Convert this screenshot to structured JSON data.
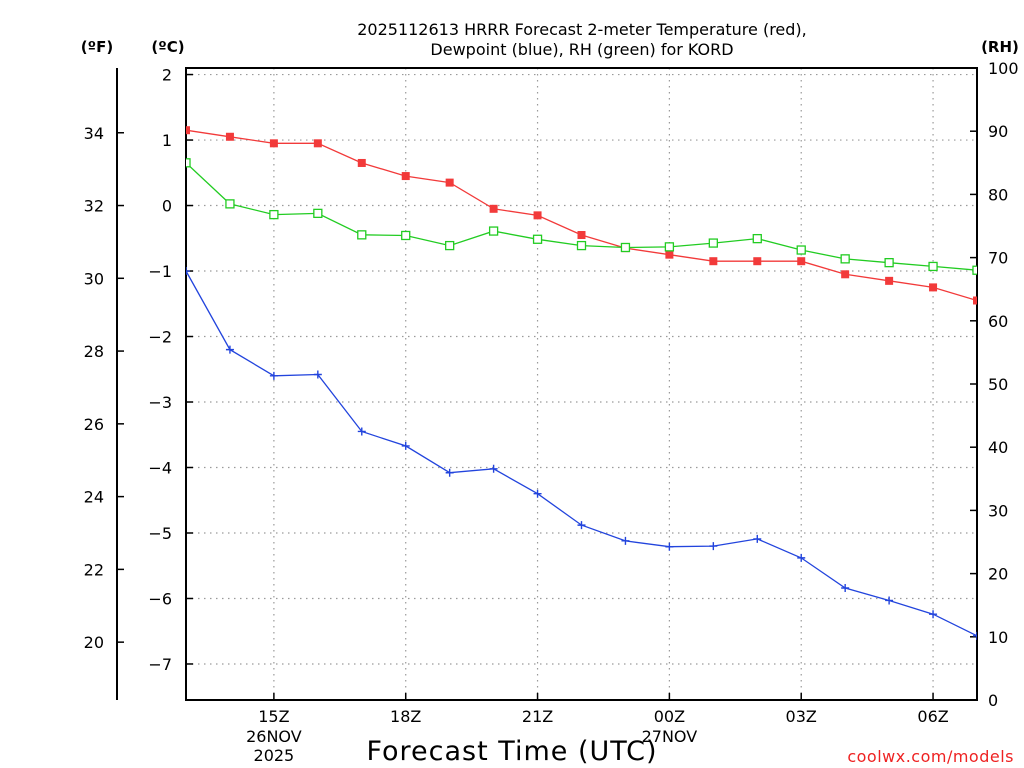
{
  "chart_data": {
    "type": "line",
    "title_line1": "2025112613 HRRR Forecast 2-meter Temperature (red),",
    "title_line2": "Dewpoint (blue), RH (green) for KORD",
    "unit_f": "(ºF)",
    "unit_c": "(ºC)",
    "unit_rh": "(RH)",
    "xlabel": "Forecast Time (UTC)",
    "credit": "coolwx.com/models",
    "x": [
      13,
      14,
      15,
      16,
      17,
      18,
      19,
      20,
      21,
      22,
      23,
      24,
      25,
      26,
      27,
      28,
      29,
      30,
      31
    ],
    "xlim": [
      13,
      31
    ],
    "x_ticks": [
      {
        "x": 15,
        "label": "15Z"
      },
      {
        "x": 18,
        "label": "18Z"
      },
      {
        "x": 21,
        "label": "21Z"
      },
      {
        "x": 24,
        "label": "00Z"
      },
      {
        "x": 27,
        "label": "03Z"
      },
      {
        "x": 30,
        "label": "06Z"
      }
    ],
    "date_labels": [
      {
        "x": 15,
        "lines": [
          "26NOV",
          "2025"
        ]
      },
      {
        "x": 24,
        "lines": [
          "27NOV"
        ]
      }
    ],
    "ylim_c": [
      -7.55,
      2.1
    ],
    "y_ticks_c": [
      2,
      1,
      0,
      -1,
      -2,
      -3,
      -4,
      -5,
      -6,
      -7
    ],
    "y_ticks_f": [
      34,
      32,
      30,
      28,
      26,
      24,
      22,
      20
    ],
    "ylim_rh": [
      0,
      100
    ],
    "y_ticks_rh": [
      100,
      90,
      80,
      70,
      60,
      50,
      40,
      30,
      20,
      10,
      0
    ],
    "series": [
      {
        "name": "2-meter Temperature",
        "axis": "C",
        "color": "#f23a3a",
        "marker": "filled-square",
        "values": [
          1.15,
          1.05,
          0.95,
          0.95,
          0.65,
          0.45,
          0.35,
          -0.05,
          -0.15,
          -0.45,
          -0.65,
          -0.75,
          -0.85,
          -0.85,
          -0.85,
          -1.05,
          -1.15,
          -1.25,
          -1.45
        ]
      },
      {
        "name": "Dewpoint",
        "axis": "C",
        "color": "#2244dd",
        "marker": "plus",
        "values": [
          -1.0,
          -2.2,
          -2.6,
          -2.58,
          -3.45,
          -3.67,
          -4.08,
          -4.02,
          -4.4,
          -4.88,
          -5.12,
          -5.21,
          -5.2,
          -5.09,
          -5.38,
          -5.84,
          -6.03,
          -6.24,
          -6.57
        ]
      },
      {
        "name": "RH",
        "axis": "RH",
        "color": "#22cc22",
        "marker": "open-square",
        "values": [
          85,
          78.5,
          76.8,
          77,
          73.6,
          73.5,
          71.9,
          74.2,
          72.9,
          71.9,
          71.6,
          71.7,
          72.3,
          73,
          71.2,
          69.8,
          69.2,
          68.6,
          68
        ]
      }
    ]
  }
}
